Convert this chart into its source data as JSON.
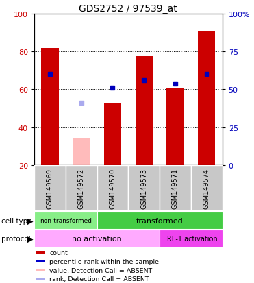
{
  "title": "GDS2752 / 97539_at",
  "samples": [
    "GSM149569",
    "GSM149572",
    "GSM149570",
    "GSM149573",
    "GSM149571",
    "GSM149574"
  ],
  "bar_heights": [
    82,
    34,
    53,
    78,
    61,
    91
  ],
  "bar_colors": [
    "#cc0000",
    "#ffbbbb",
    "#cc0000",
    "#cc0000",
    "#cc0000",
    "#cc0000"
  ],
  "percentile_values": [
    68,
    null,
    61,
    65,
    63,
    68
  ],
  "rank_absent": [
    null,
    53,
    null,
    null,
    null,
    null
  ],
  "ylim": [
    20,
    100
  ],
  "yticks_left": [
    20,
    40,
    60,
    80,
    100
  ],
  "yticks_right_vals": [
    20,
    40,
    60,
    80,
    100
  ],
  "yticks_right_labels": [
    "0",
    "25",
    "50",
    "75",
    "100%"
  ],
  "axis_left_color": "#cc0000",
  "axis_right_color": "#0000bb",
  "bar_width": 0.55,
  "blue_marker_size": 5,
  "cell_type_light_green": "#88ee88",
  "cell_type_dark_green": "#44cc44",
  "protocol_light_pink": "#ffaaff",
  "protocol_dark_magenta": "#ee44ee",
  "gray_bg": "#c8c8c8",
  "legend_colors": [
    "#cc0000",
    "#0000cc",
    "#ffbbbb",
    "#aaaaee"
  ],
  "legend_labels": [
    "count",
    "percentile rank within the sample",
    "value, Detection Call = ABSENT",
    "rank, Detection Call = ABSENT"
  ]
}
